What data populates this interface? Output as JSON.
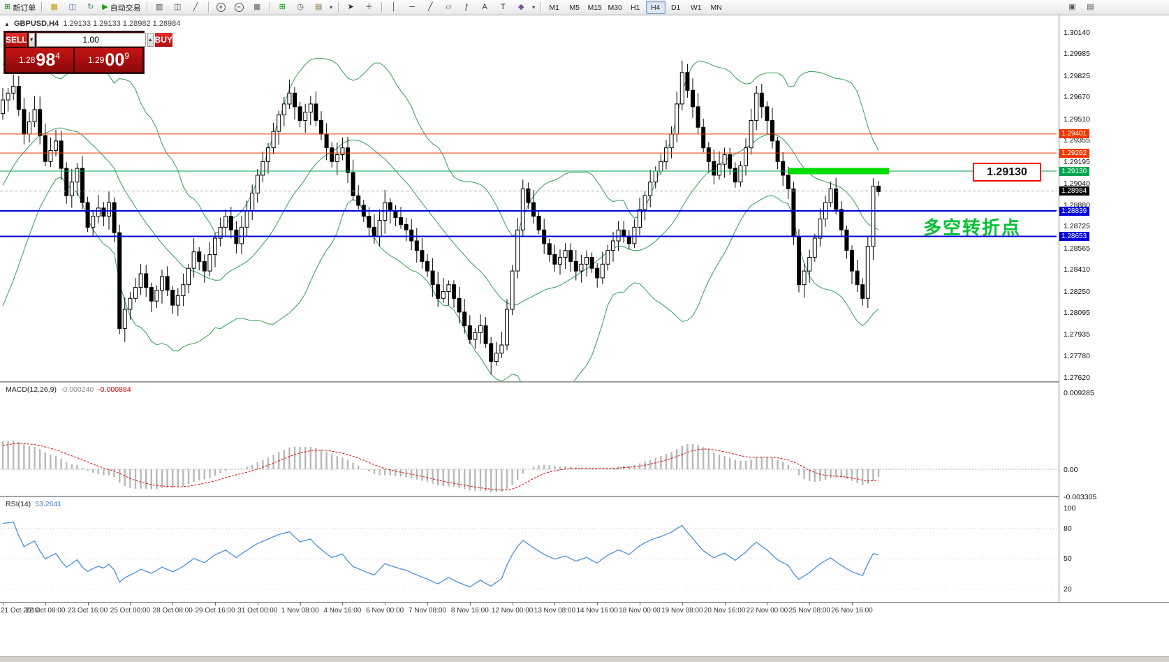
{
  "toolbar": {
    "active_timeframe": "H4",
    "items": [
      {
        "type": "button",
        "name": "new-order-button",
        "glyph": "⊞",
        "glyph_color": "#1d8f1d",
        "label": "新订单"
      },
      {
        "type": "sep"
      },
      {
        "type": "button",
        "name": "new-chart-icon",
        "glyph": "▦",
        "glyph_color": "#c49a12"
      },
      {
        "type": "button",
        "name": "profiles-icon",
        "glyph": "◫",
        "glyph_color": "#4a6fa5"
      },
      {
        "type": "button",
        "name": "refresh-icon",
        "glyph": "↻",
        "glyph_color": "#2e8b57"
      },
      {
        "type": "button",
        "name": "autotrade-button",
        "glyph": "▶",
        "glyph_color": "#12a112",
        "label": "自动交易"
      },
      {
        "type": "sep"
      },
      {
        "type": "button",
        "name": "bar-chart-icon",
        "glyph": "▥",
        "glyph_color": "#444444"
      },
      {
        "type": "button",
        "name": "candlestick-chart-icon",
        "glyph": "◫",
        "glyph_color": "#444444"
      },
      {
        "type": "button",
        "name": "line-chart-icon",
        "glyph": "╱",
        "glyph_color": "#444444"
      },
      {
        "type": "sep"
      },
      {
        "type": "button",
        "name": "zoom-in-button",
        "glyph": "+",
        "circle": true
      },
      {
        "type": "button",
        "name": "zoom-out-button",
        "glyph": "−",
        "circle": true
      },
      {
        "type": "button",
        "name": "grid-icon",
        "glyph": "▦",
        "glyph_color": "#666666"
      },
      {
        "type": "sep"
      },
      {
        "type": "button",
        "name": "indicators-button",
        "glyph": "⊞",
        "glyph_color": "#12a112"
      },
      {
        "type": "button",
        "name": "periods-button",
        "glyph": "◷",
        "glyph_color": "#555555"
      },
      {
        "type": "button",
        "name": "templates-button",
        "glyph": "▤",
        "glyph_color": "#8a6d3b"
      },
      {
        "type": "caret",
        "name": "templates-caret-icon"
      },
      {
        "type": "sep"
      },
      {
        "type": "button",
        "name": "cursor-icon",
        "glyph": "➤",
        "glyph_color": "#222222"
      },
      {
        "type": "button",
        "name": "crosshair-icon",
        "glyph": "＋",
        "glyph_color": "#222222"
      },
      {
        "type": "sep"
      },
      {
        "type": "button",
        "name": "vertical-line-icon",
        "glyph": "│",
        "glyph_color": "#333333"
      },
      {
        "type": "button",
        "name": "horizontal-line-icon",
        "glyph": "─",
        "glyph_color": "#333333"
      },
      {
        "type": "button",
        "name": "trendline-icon",
        "glyph": "╱",
        "glyph_color": "#333333"
      },
      {
        "type": "button",
        "name": "channel-icon",
        "glyph": "▱",
        "glyph_color": "#333333"
      },
      {
        "type": "button",
        "name": "fibonacci-icon",
        "glyph": "ƒ",
        "glyph_color": "#333333"
      },
      {
        "type": "button",
        "name": "text-icon",
        "glyph": "A",
        "glyph_color": "#333333"
      },
      {
        "type": "button",
        "name": "label-icon",
        "glyph": "T",
        "glyph_color": "#333333"
      },
      {
        "type": "button",
        "name": "arrows-icon",
        "glyph": "◆",
        "glyph_color": "#7a4fa0"
      },
      {
        "type": "caret",
        "name": "arrows-caret-icon"
      },
      {
        "type": "sep"
      },
      {
        "type": "tf",
        "label": "M1"
      },
      {
        "type": "tf",
        "label": "M5"
      },
      {
        "type": "tf",
        "label": "M15"
      },
      {
        "type": "tf",
        "label": "M30"
      },
      {
        "type": "tf",
        "label": "H1"
      },
      {
        "type": "tf",
        "label": "H4"
      },
      {
        "type": "tf",
        "label": "D1"
      },
      {
        "type": "tf",
        "label": "W1"
      },
      {
        "type": "tf",
        "label": "MN"
      },
      {
        "type": "spacer"
      },
      {
        "type": "button",
        "name": "dock-window-icon",
        "glyph": "▣",
        "glyph_color": "#555555"
      },
      {
        "type": "button",
        "name": "arrange-windows-icon",
        "glyph": "▤",
        "glyph_color": "#555555"
      },
      {
        "type": "pad"
      }
    ]
  },
  "chart": {
    "collapse_glyph": "▲",
    "symbol": "GBPUSD,H4",
    "ohlc": "1.29133 1.29133 1.28982 1.28984",
    "callout_price": "1.29130",
    "annotation": "多空转折点",
    "hlines": [
      {
        "price": 1.29401,
        "label": "1.29401",
        "color": "#f03800",
        "width": 1
      },
      {
        "price": 1.29262,
        "label": "1.29262",
        "color": "#f03800",
        "width": 1
      },
      {
        "price": 1.2913,
        "label": "1.29130",
        "color": "#00a651",
        "width": 1
      },
      {
        "price": 1.28839,
        "label": "1.28839",
        "color": "#0000d8",
        "width": 2
      },
      {
        "price": 1.28653,
        "label": "1.28653",
        "color": "#0000d8",
        "width": 2
      }
    ],
    "current_price": {
      "value": 1.28984,
      "label": "1.28984"
    },
    "highlight_segment": {
      "price": 1.2913,
      "x_from_candle": 148,
      "x_to_candle": 167,
      "color": "#00dc00"
    }
  },
  "price_axis": {
    "ticks": [
      "1.30140",
      "1.29985",
      "1.29825",
      "1.29670",
      "1.29510",
      "1.29355",
      "1.29195",
      "1.29040",
      "1.28880",
      "1.28725",
      "1.28565",
      "1.28410",
      "1.28250",
      "1.28095",
      "1.27935",
      "1.27780",
      "1.27620"
    ]
  },
  "time_axis": {
    "candles_per_label": 8,
    "labels": [
      "21 Oct 2019",
      "22 Oct 08:00",
      "23 Oct 16:00",
      "25 Oct 00:00",
      "28 Oct 08:00",
      "29 Oct 16:00",
      "31 Oct 00:00",
      "1 Nov 08:00",
      "4 Nov 16:00",
      "6 Nov 00:00",
      "7 Nov 08:00",
      "8 Nov 16:00",
      "12 Nov 00:00",
      "13 Nov 08:00",
      "14 Nov 16:00",
      "18 Nov 00:00",
      "19 Nov 08:00",
      "20 Nov 16:00",
      "22 Nov 00:00",
      "25 Nov 08:00",
      "26 Nov 16:00"
    ]
  },
  "macd_pane": {
    "title": "MACD(12,26,9)",
    "value": "-0.000240",
    "signal_value": "-0.000884",
    "ticks": [
      {
        "v": 0.009285,
        "label": "0.009285"
      },
      {
        "v": 0,
        "label": "0.00"
      },
      {
        "v": -0.003305,
        "label": "-0.003305"
      }
    ],
    "histogram_color": "#b8b8b8",
    "signal_color": "#e00000"
  },
  "rsi_pane": {
    "title": "RSI(14)",
    "value": "53.2641",
    "ticks": [
      100,
      80,
      50,
      20
    ],
    "line_color": "#4a90d9"
  },
  "trade_panel": {
    "sell_label": "SELL",
    "buy_label": "BUY",
    "volume": "1.00",
    "sell_price": {
      "head": "1.28",
      "big": "98",
      "pip": "4"
    },
    "buy_price": {
      "head": "1.29",
      "big": "00",
      "pip": "9"
    }
  },
  "chart_data": {
    "type": "candlestick",
    "symbol": "GBPUSD",
    "timeframe": "H4",
    "ohlc_display": {
      "open": "1.29133",
      "high": "1.29133",
      "low": "1.28982",
      "close": "1.28984"
    },
    "ylim": [
      1.2762,
      1.3014
    ],
    "open0": 1.2955,
    "bollinger_color": "#2f9e54",
    "pre_closes": [
      1.282,
      1.2828,
      1.2836,
      1.2844,
      1.2852,
      1.286,
      1.2868,
      1.2876,
      1.2884,
      1.2892,
      1.29,
      1.2908,
      1.2916,
      1.2924,
      1.2932,
      1.294,
      1.2948,
      1.2954,
      1.296,
      1.2965
    ],
    "closes": [
      1.2965,
      1.297,
      1.2975,
      1.2958,
      1.294,
      1.2949,
      1.2958,
      1.2939,
      1.292,
      1.2928,
      1.2935,
      1.2915,
      1.2895,
      1.2905,
      1.2915,
      1.289,
      1.2872,
      1.288,
      1.2886,
      1.288,
      1.289,
      1.2868,
      1.2798,
      1.2812,
      1.282,
      1.2828,
      1.2838,
      1.2828,
      1.2818,
      1.2826,
      1.2836,
      1.2826,
      1.2815,
      1.2822,
      1.283,
      1.2842,
      1.2854,
      1.2847,
      1.284,
      1.2852,
      1.2864,
      1.2872,
      1.288,
      1.287,
      1.286,
      1.2872,
      1.2884,
      1.2897,
      1.291,
      1.292,
      1.293,
      1.2942,
      1.2954,
      1.2962,
      1.297,
      1.296,
      1.295,
      1.2956,
      1.2962,
      1.295,
      1.294,
      1.293,
      1.292,
      1.2925,
      1.293,
      1.2912,
      1.2895,
      1.2888,
      1.288,
      1.2872,
      1.2865,
      1.2877,
      1.289,
      1.2884,
      1.2879,
      1.2874,
      1.287,
      1.2862,
      1.2855,
      1.2847,
      1.284,
      1.283,
      1.282,
      1.2825,
      1.283,
      1.282,
      1.281,
      1.28,
      1.279,
      1.2795,
      1.28,
      1.2787,
      1.2774,
      1.278,
      1.2786,
      1.2812,
      1.284,
      1.287,
      1.29,
      1.289,
      1.288,
      1.287,
      1.286,
      1.2852,
      1.2845,
      1.285,
      1.2855,
      1.2847,
      1.284,
      1.2845,
      1.285,
      1.2842,
      1.2835,
      1.2845,
      1.2855,
      1.2862,
      1.287,
      1.2865,
      1.286,
      1.2872,
      1.2885,
      1.2895,
      1.2905,
      1.2913,
      1.292,
      1.293,
      1.294,
      1.2962,
      1.2985,
      1.2972,
      1.296,
      1.2945,
      1.293,
      1.292,
      1.291,
      1.2918,
      1.2925,
      1.2915,
      1.2905,
      1.2917,
      1.293,
      1.295,
      1.297,
      1.296,
      1.295,
      1.2935,
      1.292,
      1.291,
      1.29,
      1.2865,
      1.283,
      1.284,
      1.285,
      1.2864,
      1.2878,
      1.289,
      1.29,
      1.2885,
      1.287,
      1.2855,
      1.284,
      1.283,
      1.282,
      1.2858,
      1.2902,
      1.2898
    ],
    "indicators": {
      "bollinger": {
        "period": 20,
        "deviation": 2
      },
      "macd": {
        "fast": 12,
        "slow": 26,
        "signal": 9
      },
      "rsi": {
        "period": 14
      }
    }
  }
}
